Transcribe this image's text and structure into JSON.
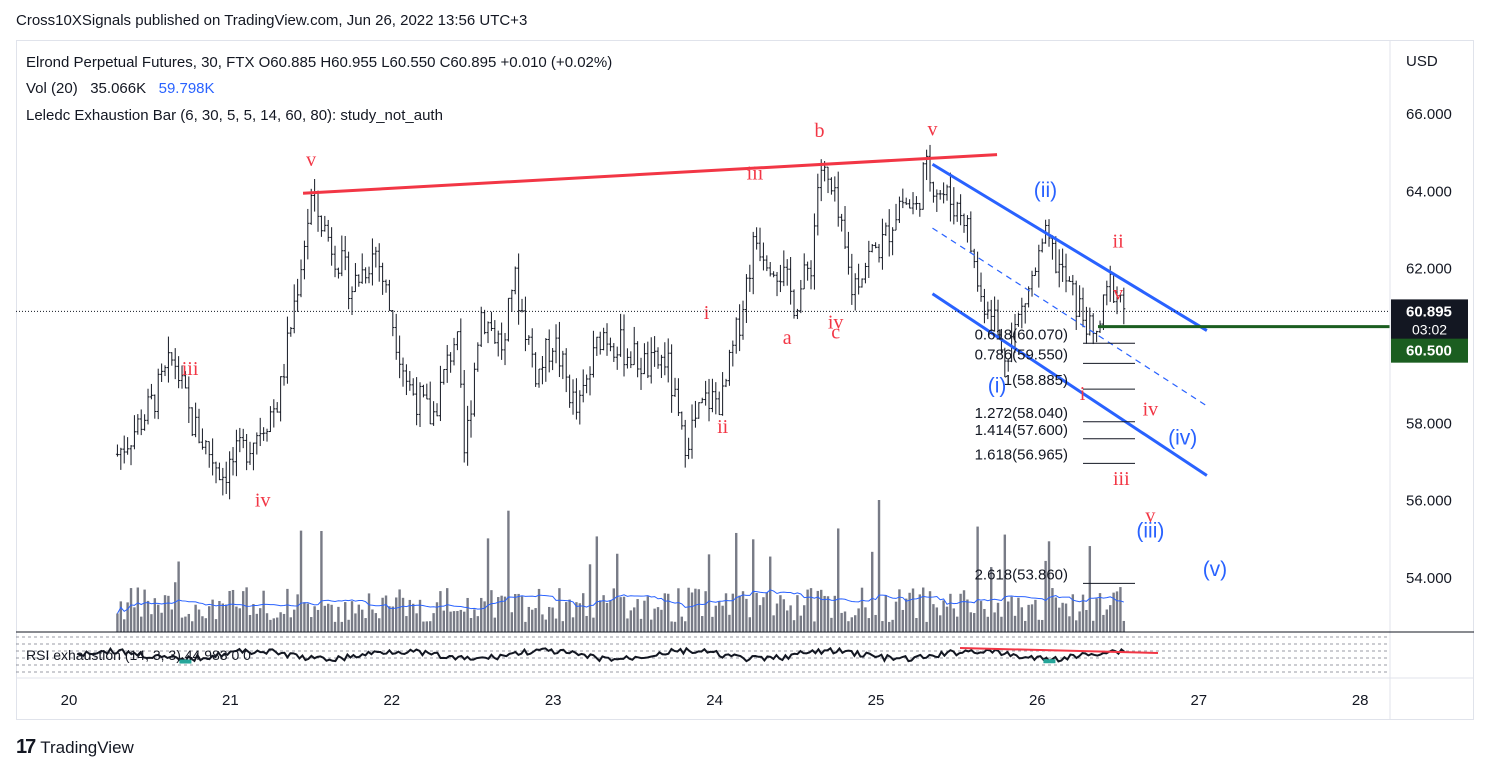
{
  "header": {
    "publisher_line": "Cross10XSignals published on TradingView.com, Jun 26, 2022 13:56 UTC+3"
  },
  "legend": {
    "symbol_line": "Elrond Perpetual Futures, 30, FTX  O60.885  H60.955  L60.550  C60.895  +0.010 (+0.02%)",
    "vol_label": "Vol (20)",
    "vol_value": "35.066K",
    "vol_ma": "59.798K",
    "indicator_line": "Leledc Exhaustion Bar (6, 30, 5, 5, 14, 60, 80): study_not_auth",
    "rsi_label": "RSI exhaustion (14, 3, 3)  44.983  0  0"
  },
  "footer": {
    "brand": "TradingView"
  },
  "colors": {
    "wave_red": "#f23645",
    "wave_blue": "#2962ff",
    "candle": "#131722",
    "volume": "#787b86",
    "vol_ma": "#2962ff",
    "target": "#1b5e20"
  },
  "chart_data": {
    "type": "candlestick",
    "currency": "USD",
    "ylim": [
      52.6,
      67.2
    ],
    "price_ticks": [
      "66.000",
      "64.000",
      "62.000",
      "56.000",
      "54.000"
    ],
    "x_tick_labels": [
      "20",
      "21",
      "22",
      "23",
      "24",
      "25",
      "26",
      "27",
      "28"
    ],
    "last_price": {
      "value": 60.895,
      "label": "60.895",
      "countdown": "03:02"
    },
    "target_line": {
      "value": 60.5,
      "label": "60.500"
    },
    "price_path": [
      [
        20.3,
        57.2
      ],
      [
        20.5,
        58.4
      ],
      [
        20.65,
        59.7
      ],
      [
        20.75,
        58.1
      ],
      [
        20.95,
        56.7
      ],
      [
        21.1,
        57.4
      ],
      [
        21.3,
        58.6
      ],
      [
        21.5,
        63.8
      ],
      [
        21.75,
        61.5
      ],
      [
        21.9,
        62.5
      ],
      [
        22.1,
        59.0
      ],
      [
        22.25,
        58.1
      ],
      [
        22.4,
        60.4
      ],
      [
        22.45,
        57.1
      ],
      [
        22.55,
        60.9
      ],
      [
        22.7,
        59.9
      ],
      [
        22.75,
        61.9
      ],
      [
        22.9,
        59.2
      ],
      [
        23.0,
        60.2
      ],
      [
        23.15,
        58.2
      ],
      [
        23.3,
        60.4
      ],
      [
        23.5,
        59.7
      ],
      [
        23.6,
        59.4
      ],
      [
        23.7,
        59.7
      ],
      [
        23.8,
        57.5
      ],
      [
        23.85,
        57.8
      ],
      [
        23.95,
        58.6
      ],
      [
        24.05,
        58.6
      ],
      [
        24.15,
        60.6
      ],
      [
        24.25,
        62.8
      ],
      [
        24.4,
        62.0
      ],
      [
        24.5,
        61.1
      ],
      [
        24.6,
        62.2
      ],
      [
        24.65,
        64.7
      ],
      [
        24.75,
        63.6
      ],
      [
        24.85,
        61.5
      ],
      [
        24.95,
        62.3
      ],
      [
        25.05,
        62.7
      ],
      [
        25.15,
        63.8
      ],
      [
        25.25,
        63.5
      ],
      [
        25.3,
        64.6
      ],
      [
        25.4,
        64.0
      ],
      [
        25.55,
        63.4
      ],
      [
        25.65,
        61.2
      ],
      [
        25.72,
        61.1
      ],
      [
        25.78,
        59.7
      ],
      [
        25.85,
        60.3
      ],
      [
        25.95,
        61.5
      ],
      [
        26.05,
        62.7
      ],
      [
        26.15,
        61.9
      ],
      [
        26.25,
        61.0
      ],
      [
        26.3,
        60.7
      ],
      [
        26.35,
        60.0
      ],
      [
        26.45,
        61.6
      ],
      [
        26.5,
        61.4
      ],
      [
        26.55,
        60.9
      ]
    ],
    "annotations_red": [
      {
        "text": "v",
        "x": 21.5,
        "y": 64.65
      },
      {
        "text": "iii",
        "x": 20.75,
        "y": 59.25
      },
      {
        "text": "iv",
        "x": 21.2,
        "y": 55.85
      },
      {
        "text": "iii",
        "x": 24.25,
        "y": 64.3
      },
      {
        "text": "b",
        "x": 24.65,
        "y": 65.4
      },
      {
        "text": "v",
        "x": 25.35,
        "y": 65.45
      },
      {
        "text": "i",
        "x": 23.95,
        "y": 60.7
      },
      {
        "text": "ii",
        "x": 24.05,
        "y": 57.75
      },
      {
        "text": "a",
        "x": 24.45,
        "y": 60.05
      },
      {
        "text": "iv",
        "x": 24.75,
        "y": 60.45
      },
      {
        "text": "c",
        "x": 24.75,
        "y": 60.2
      },
      {
        "text": "ii",
        "x": 26.5,
        "y": 62.55
      },
      {
        "text": "v",
        "x": 26.5,
        "y": 61.2
      },
      {
        "text": "i",
        "x": 26.28,
        "y": 58.6
      },
      {
        "text": "iv",
        "x": 26.7,
        "y": 58.2
      },
      {
        "text": "iii",
        "x": 26.52,
        "y": 56.4
      },
      {
        "text": "v",
        "x": 26.7,
        "y": 55.45
      }
    ],
    "annotations_blue": [
      {
        "text": "(ii)",
        "x": 26.05,
        "y": 63.85
      },
      {
        "text": "(i)",
        "x": 25.75,
        "y": 58.8
      },
      {
        "text": "(iv)",
        "x": 26.9,
        "y": 57.45
      },
      {
        "text": "(iii)",
        "x": 26.7,
        "y": 55.05
      },
      {
        "text": "(v)",
        "x": 27.1,
        "y": 54.05
      }
    ],
    "trendlines_red": [
      {
        "x1": 21.45,
        "y1": 63.95,
        "x2": 25.75,
        "y2": 64.95
      }
    ],
    "trendlines_blue": [
      {
        "x1": 25.35,
        "y1": 64.7,
        "x2": 27.05,
        "y2": 60.4,
        "dashed": false
      },
      {
        "x1": 25.35,
        "y1": 63.05,
        "x2": 27.05,
        "y2": 58.45,
        "dashed": true
      },
      {
        "x1": 25.35,
        "y1": 61.35,
        "x2": 27.05,
        "y2": 56.65,
        "dashed": false
      }
    ],
    "fib_levels": [
      {
        "label": "0.618(60.070)",
        "value": 60.07
      },
      {
        "label": "0.786(59.550)",
        "value": 59.55
      },
      {
        "label": "1(58.885)",
        "value": 58.885
      },
      {
        "label": "1.272(58.040)",
        "value": 58.04
      },
      {
        "label": "1.414(57.600)",
        "value": 57.6
      },
      {
        "label": "1.618(56.965)",
        "value": 56.965
      },
      {
        "label": "2.618(53.860)",
        "value": 53.86
      }
    ]
  }
}
